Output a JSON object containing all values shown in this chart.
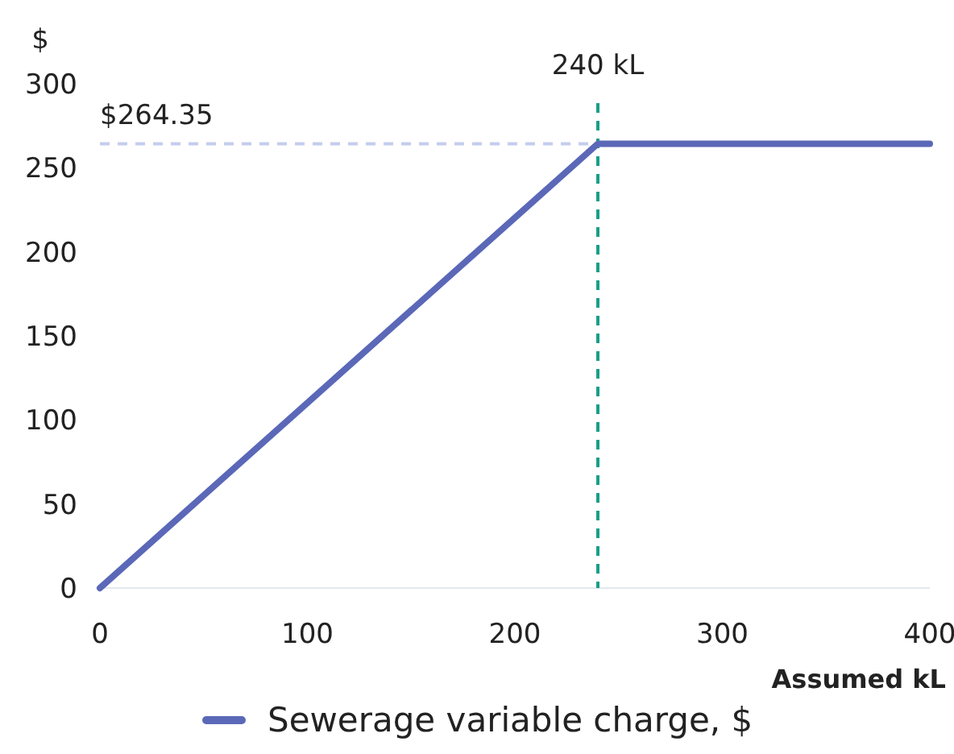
{
  "chart_data": {
    "type": "line",
    "ylabel": "$",
    "xlabel": "Assumed kL",
    "x": [
      0,
      240,
      400
    ],
    "series": [
      {
        "name": "Sewerage variable charge, $",
        "color": "#5b68b8",
        "values": [
          0,
          264.35,
          264.35
        ]
      }
    ],
    "xlim": [
      0,
      400
    ],
    "xticks": [
      0,
      100,
      200,
      300,
      400
    ],
    "ylim": [
      0,
      300
    ],
    "yticks": [
      0,
      50,
      100,
      150,
      200,
      250,
      300
    ],
    "ref_lines": [
      {
        "axis": "x",
        "value": 240,
        "label": "240 kL",
        "color": "#1a9e8a",
        "line_style": "dashed"
      },
      {
        "axis": "y",
        "value": 264.35,
        "label": "$264.35",
        "color": "#c5cdee",
        "line_style": "dashed"
      }
    ],
    "grid": false,
    "legend": "bottom",
    "marker": "none",
    "line_style": "solid"
  }
}
